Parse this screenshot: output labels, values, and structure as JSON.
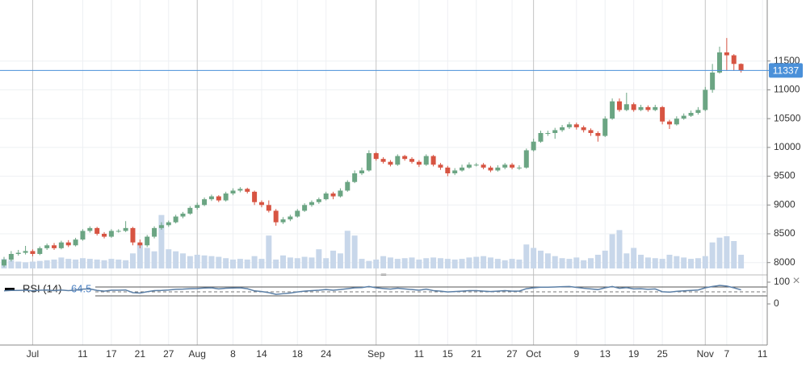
{
  "chart_data": {
    "type": "candlestick",
    "categories": [
      null,
      null,
      null,
      null,
      "Jul",
      null,
      null,
      null,
      null,
      null,
      null,
      "11",
      null,
      null,
      null,
      "17",
      null,
      null,
      null,
      "21",
      null,
      null,
      null,
      "27",
      null,
      null,
      null,
      "Aug",
      null,
      null,
      null,
      null,
      "8",
      null,
      null,
      null,
      "14",
      null,
      null,
      null,
      null,
      "18",
      null,
      null,
      null,
      "24",
      null,
      null,
      null,
      null,
      null,
      null,
      "Sep",
      null,
      null,
      null,
      null,
      null,
      "11",
      null,
      null,
      null,
      "15",
      null,
      null,
      null,
      "21",
      null,
      null,
      null,
      null,
      "27",
      null,
      null,
      "Oct",
      null,
      null,
      null,
      null,
      null,
      "9",
      null,
      null,
      null,
      "13",
      null,
      null,
      null,
      "19",
      null,
      null,
      null,
      "25",
      null,
      null,
      null,
      null,
      null,
      "Nov",
      null,
      null,
      "7",
      null,
      null,
      null,
      null,
      "11"
    ],
    "open": [
      7950,
      8050,
      8150,
      8170,
      8200,
      8150,
      8250,
      8300,
      8250,
      8350,
      8300,
      8400,
      8550,
      8600,
      8500,
      8450,
      8550,
      8550,
      8600,
      8350,
      8300,
      8450,
      8600,
      8650,
      8700,
      8800,
      8850,
      8950,
      9000,
      9100,
      9150,
      9080,
      9200,
      9250,
      9280,
      9230,
      9050,
      9000,
      8900,
      8700,
      8750,
      8800,
      8900,
      9000,
      9050,
      9100,
      9200,
      9150,
      9250,
      9400,
      9550,
      9600,
      9900,
      9800,
      9750,
      9700,
      9850,
      9800,
      9750,
      9700,
      9850,
      9700,
      9650,
      9550,
      9600,
      9650,
      9700,
      9700,
      9650,
      9600,
      9650,
      9700,
      9650,
      9650,
      9950,
      10100,
      10250,
      10250,
      10300,
      10350,
      10400,
      10350,
      10300,
      10250,
      10200,
      10500,
      10800,
      10650,
      10750,
      10650,
      10700,
      10650,
      10700,
      10450,
      10400,
      10500,
      10550,
      10600,
      10650,
      11000,
      11300,
      11650,
      11600,
      11450,
      null,
      null,
      null
    ],
    "high": [
      8100,
      8200,
      8220,
      8290,
      8230,
      8280,
      8330,
      8340,
      8380,
      8390,
      8430,
      8580,
      8630,
      8620,
      8530,
      8580,
      8580,
      8720,
      8620,
      8400,
      8480,
      8630,
      8700,
      8730,
      8830,
      8880,
      8980,
      9040,
      9130,
      9180,
      9170,
      9230,
      9290,
      9310,
      9300,
      9250,
      9080,
      9080,
      8930,
      8790,
      8830,
      8930,
      9030,
      9080,
      9130,
      9230,
      9230,
      9290,
      9430,
      9600,
      9650,
      9950,
      9920,
      9830,
      9780,
      9880,
      9870,
      9830,
      9780,
      9880,
      9870,
      9730,
      9680,
      9640,
      9700,
      9740,
      9730,
      9730,
      9680,
      9690,
      9730,
      9730,
      9690,
      9980,
      10150,
      10290,
      10290,
      10340,
      10390,
      10440,
      10430,
      10380,
      10330,
      10280,
      10540,
      10850,
      10850,
      10950,
      10780,
      10740,
      10730,
      10740,
      10720,
      10480,
      10540,
      10590,
      10640,
      10700,
      11050,
      11450,
      11750,
      11900,
      11620,
      11460,
      null,
      null,
      null
    ],
    "low": [
      7920,
      8020,
      8120,
      8140,
      8110,
      8130,
      8220,
      8220,
      8230,
      8270,
      8280,
      8380,
      8520,
      8470,
      8420,
      8430,
      8520,
      8530,
      8300,
      8250,
      8270,
      8420,
      8570,
      8620,
      8680,
      8770,
      8830,
      8920,
      8980,
      9070,
      9050,
      9060,
      9170,
      9220,
      9200,
      9000,
      8960,
      8870,
      8640,
      8670,
      8720,
      8780,
      8880,
      8970,
      9020,
      9080,
      9100,
      9130,
      9230,
      9380,
      9520,
      9580,
      9770,
      9720,
      9670,
      9680,
      9770,
      9720,
      9660,
      9680,
      9670,
      9610,
      9500,
      9520,
      9580,
      9630,
      9670,
      9620,
      9570,
      9580,
      9620,
      9620,
      9610,
      9630,
      9930,
      10080,
      10200,
      10150,
      10270,
      10320,
      10310,
      10260,
      10200,
      10100,
      10180,
      10480,
      10620,
      10630,
      10620,
      10630,
      10620,
      10630,
      10400,
      10320,
      10380,
      10480,
      10530,
      10570,
      10630,
      10950,
      11280,
      11330,
      11330,
      11300,
      null,
      null,
      null
    ],
    "close": [
      8050,
      8150,
      8170,
      8200,
      8150,
      8250,
      8300,
      8250,
      8350,
      8300,
      8400,
      8550,
      8600,
      8500,
      8450,
      8550,
      8550,
      8600,
      8350,
      8300,
      8450,
      8600,
      8650,
      8700,
      8800,
      8850,
      8950,
      9000,
      9100,
      9150,
      9080,
      9200,
      9250,
      9280,
      9230,
      9050,
      9000,
      8900,
      8700,
      8750,
      8800,
      8900,
      9000,
      9050,
      9100,
      9200,
      9150,
      9250,
      9400,
      9550,
      9600,
      9900,
      9800,
      9750,
      9700,
      9850,
      9800,
      9750,
      9700,
      9850,
      9700,
      9650,
      9550,
      9600,
      9650,
      9700,
      9700,
      9650,
      9600,
      9650,
      9700,
      9650,
      9650,
      9950,
      10100,
      10250,
      10250,
      10300,
      10350,
      10400,
      10350,
      10300,
      10250,
      10200,
      10500,
      10800,
      10650,
      10750,
      10650,
      10700,
      10650,
      10700,
      10450,
      10400,
      10500,
      10550,
      10600,
      10650,
      11000,
      11300,
      11650,
      11600,
      11450,
      11337,
      null,
      null,
      null
    ],
    "volume": [
      14,
      12,
      10,
      9,
      10,
      11,
      12,
      13,
      16,
      14,
      13,
      15,
      14,
      13,
      12,
      14,
      13,
      12,
      22,
      35,
      30,
      25,
      78,
      28,
      25,
      22,
      18,
      20,
      19,
      18,
      17,
      15,
      13,
      14,
      13,
      18,
      14,
      48,
      13,
      19,
      16,
      15,
      17,
      16,
      28,
      15,
      26,
      22,
      55,
      48,
      14,
      11,
      13,
      18,
      16,
      14,
      15,
      16,
      13,
      15,
      16,
      15,
      14,
      13,
      14,
      16,
      17,
      18,
      16,
      14,
      12,
      14,
      13,
      35,
      30,
      26,
      22,
      18,
      15,
      14,
      16,
      12,
      15,
      20,
      26,
      50,
      56,
      22,
      30,
      20,
      16,
      15,
      14,
      20,
      18,
      16,
      14,
      15,
      18,
      38,
      45,
      47,
      40,
      20,
      null,
      null,
      null
    ],
    "up_color": "#6ba583",
    "down_color": "#d75442",
    "volume_color": "#c8d7ea",
    "price_line_color": "#4a90d9",
    "ylim": [
      7800,
      12560
    ],
    "yticks": [
      8000,
      8500,
      9000,
      9500,
      10000,
      10500,
      11000,
      11500
    ],
    "grid": true,
    "indicator": {
      "name": "RSI (14)",
      "color": "#5b7fa6",
      "ylim": [
        0,
        100
      ],
      "yticks": [
        100,
        0
      ],
      "values": [
        60,
        62,
        62,
        63,
        60,
        63,
        64,
        61,
        64,
        61,
        64,
        68,
        69,
        62,
        59,
        63,
        63,
        64,
        52,
        50,
        56,
        61,
        62,
        64,
        67,
        68,
        70,
        71,
        73,
        74,
        69,
        72,
        73,
        74,
        70,
        60,
        57,
        52,
        44,
        47,
        50,
        55,
        59,
        61,
        63,
        66,
        63,
        66,
        70,
        74,
        75,
        80,
        74,
        71,
        68,
        72,
        69,
        66,
        63,
        68,
        61,
        59,
        55,
        57,
        59,
        61,
        61,
        59,
        57,
        59,
        61,
        59,
        59,
        70,
        74,
        77,
        77,
        78,
        79,
        80,
        76,
        72,
        69,
        66,
        74,
        80,
        72,
        75,
        69,
        70,
        67,
        69,
        56,
        54,
        58,
        60,
        62,
        64,
        74,
        80,
        85,
        82,
        74,
        64.5,
        null,
        null,
        null
      ]
    }
  }
}
